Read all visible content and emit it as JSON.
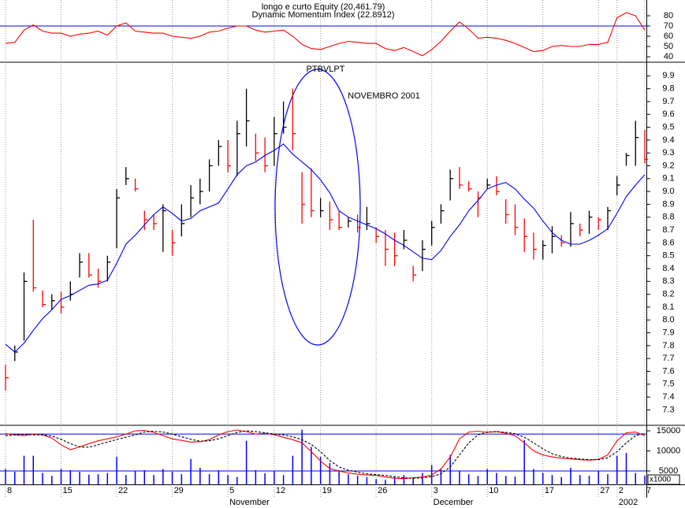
{
  "chart_data": [
    {
      "type": "line",
      "title": "longo e curto Equity (20,461.79)",
      "subtitle": "Dynamic Momentum Index (22.8912)",
      "ylim": [
        35.4,
        95.4
      ],
      "yticks": [
        40,
        50,
        60,
        70,
        80
      ],
      "ref_lines": [
        70
      ],
      "ref_color": "#0000ff",
      "series": [
        {
          "color": "#ff0000",
          "values": [
            53,
            54,
            66,
            71,
            65,
            63,
            63,
            60,
            62,
            63,
            65,
            61,
            70,
            73,
            65,
            64,
            63,
            63,
            60,
            59,
            58,
            60,
            64,
            65,
            68,
            70,
            70,
            66,
            64,
            65,
            66,
            60,
            52,
            48,
            47,
            50,
            53,
            55,
            54,
            53,
            53,
            48,
            46,
            49,
            45,
            41,
            47,
            55,
            65,
            74,
            67,
            58,
            59,
            58,
            56,
            53,
            49,
            45,
            46,
            50,
            51,
            50,
            50,
            52,
            52,
            54,
            78,
            83,
            80,
            66
          ]
        }
      ]
    },
    {
      "type": "hlc",
      "title": "PTBVLPT",
      "annotation": "NOVEMBRO 2001",
      "annotation_color": "#0000ff",
      "ylim": [
        7.18,
        10.0
      ],
      "yticks": [
        7.3,
        7.4,
        7.5,
        7.6,
        7.7,
        7.8,
        7.9,
        {
          "value": 8,
          "label": "8.0"
        },
        8.1,
        8.2,
        8.3,
        8.4,
        8.5,
        8.6,
        8.7,
        8.8,
        8.9,
        {
          "value": 9,
          "label": "9.0"
        },
        9.1,
        9.2,
        9.3,
        9.4,
        9.5,
        9.6,
        9.7,
        9.8,
        9.9
      ],
      "up_color": "#000000",
      "down_color": "#ff0000",
      "high": [
        7.65,
        7.8,
        8.37,
        8.78,
        8.23,
        8.2,
        8.22,
        8.3,
        8.52,
        8.52,
        8.4,
        8.5,
        9.02,
        9.19,
        9.1,
        8.85,
        8.82,
        8.9,
        8.7,
        8.9,
        9.05,
        9.1,
        9.25,
        9.4,
        9.4,
        9.55,
        9.8,
        9.45,
        9.42,
        9.58,
        9.7,
        9.8,
        9.15,
        9.18,
        8.95,
        8.92,
        8.85,
        8.8,
        8.82,
        8.88,
        8.72,
        8.7,
        8.68,
        8.7,
        8.42,
        8.62,
        8.77,
        8.9,
        9.17,
        9.19,
        9.08,
        9.0,
        9.1,
        9.12,
        8.94,
        8.9,
        8.79,
        8.68,
        8.62,
        8.73,
        8.66,
        8.84,
        8.75,
        8.85,
        8.8,
        8.88,
        9.12,
        9.3,
        9.55,
        9.48
      ],
      "low": [
        7.45,
        7.68,
        7.84,
        8.22,
        8.1,
        8.08,
        8.05,
        8.15,
        8.33,
        8.33,
        8.25,
        8.3,
        8.56,
        9.05,
        9.0,
        8.7,
        8.7,
        8.53,
        8.5,
        8.65,
        8.8,
        8.9,
        9.0,
        9.2,
        9.15,
        9.12,
        9.35,
        9.24,
        9.15,
        9.2,
        9.45,
        9.32,
        8.75,
        8.8,
        8.8,
        8.7,
        8.7,
        8.72,
        8.68,
        8.7,
        8.6,
        8.42,
        8.42,
        8.55,
        8.3,
        8.38,
        8.58,
        8.75,
        8.93,
        9.02,
        9.0,
        8.8,
        9.02,
        8.97,
        8.75,
        8.66,
        8.53,
        8.47,
        8.47,
        8.52,
        8.57,
        8.57,
        8.65,
        8.67,
        8.7,
        8.7,
        8.97,
        9.2,
        9.2,
        9.22
      ],
      "close": [
        7.55,
        7.75,
        8.3,
        8.25,
        8.12,
        8.15,
        8.1,
        8.2,
        8.45,
        8.35,
        8.3,
        8.45,
        8.95,
        9.1,
        9.02,
        8.78,
        8.75,
        8.85,
        8.6,
        8.75,
        8.95,
        9.0,
        9.2,
        9.35,
        9.2,
        9.45,
        9.55,
        9.3,
        9.2,
        9.45,
        9.5,
        9.45,
        8.9,
        8.85,
        8.85,
        8.78,
        8.72,
        8.77,
        8.72,
        8.75,
        8.65,
        8.55,
        8.5,
        8.62,
        8.35,
        8.55,
        8.72,
        8.85,
        9.1,
        9.05,
        9.02,
        8.95,
        9.05,
        9.0,
        8.82,
        8.72,
        8.65,
        8.55,
        8.58,
        8.65,
        8.6,
        8.75,
        8.7,
        8.8,
        8.78,
        8.85,
        9.05,
        9.28,
        9.42,
        9.25
      ],
      "series": [
        {
          "color": "#0000ff",
          "values": [
            7.81,
            7.75,
            7.82,
            7.92,
            8.01,
            8.08,
            8.16,
            8.19,
            8.23,
            8.27,
            8.28,
            8.31,
            8.44,
            8.59,
            8.66,
            8.74,
            8.82,
            8.88,
            8.83,
            8.77,
            8.79,
            8.85,
            8.88,
            8.91,
            9.02,
            9.13,
            9.2,
            9.23,
            9.28,
            9.32,
            9.37,
            9.29,
            9.23,
            9.17,
            9.09,
            8.99,
            8.85,
            8.8,
            8.77,
            8.74,
            8.71,
            8.67,
            8.62,
            8.58,
            8.53,
            8.48,
            8.47,
            8.54,
            8.65,
            8.74,
            8.85,
            8.93,
            9.02,
            9.05,
            9.07,
            9.02,
            8.94,
            8.87,
            8.77,
            8.68,
            8.62,
            8.59,
            8.59,
            8.62,
            8.66,
            8.71,
            8.83,
            8.96,
            9.05,
            9.13
          ]
        }
      ]
    },
    {
      "type": "line",
      "unit_label": "x1000",
      "ylim": [
        1670,
        16370
      ],
      "yticks": [
        5000,
        10000,
        15000
      ],
      "ref_lines": [
        14200,
        5000
      ],
      "ref_color": "#0000ff",
      "volume_color": "#0000ff",
      "volume": [
        5500,
        4800,
        8800,
        8800,
        4500,
        3800,
        5500,
        5200,
        4800,
        4100,
        4200,
        4500,
        8500,
        4000,
        5000,
        5200,
        4000,
        5500,
        4800,
        4200,
        8000,
        5800,
        4200,
        5200,
        4000,
        3500,
        12500,
        5200,
        4400,
        5000,
        4000,
        8800,
        15300,
        11000,
        8500,
        7000,
        5200,
        4200,
        3800,
        3500,
        3000,
        2800,
        3500,
        4000,
        3200,
        4500,
        6500,
        5500,
        9000,
        5000,
        4200,
        3800,
        5500,
        4500,
        3800,
        3600,
        12700,
        5500,
        4500,
        4000,
        3500,
        5800,
        4000,
        3800,
        5000,
        4200,
        8800,
        9500,
        4500,
        3800
      ],
      "series": [
        {
          "color": "#ff0000",
          "dash": false,
          "values": [
            14300,
            14000,
            13800,
            14200,
            14000,
            13200,
            11500,
            10300,
            11000,
            11800,
            12500,
            13000,
            13500,
            14200,
            15000,
            15100,
            14600,
            13800,
            13000,
            12600,
            12200,
            12300,
            12800,
            14000,
            14800,
            15200,
            14800,
            14200,
            14400,
            14000,
            13400,
            12800,
            12000,
            9800,
            7500,
            5600,
            5000,
            4500,
            4200,
            4000,
            3900,
            3500,
            3200,
            3100,
            3300,
            3500,
            4000,
            5500,
            8500,
            13000,
            14700,
            14900,
            14600,
            14800,
            14400,
            13800,
            12000,
            10000,
            9000,
            8500,
            8200,
            8000,
            7800,
            7700,
            7900,
            9000,
            12500,
            14500,
            14700,
            13800
          ]
        },
        {
          "color": "#000000",
          "dash": true,
          "values": [
            13800,
            14000,
            14100,
            14000,
            14000,
            13700,
            12900,
            11800,
            11000,
            10900,
            11500,
            12200,
            12800,
            13400,
            14000,
            14700,
            14900,
            14700,
            14200,
            13500,
            12900,
            12400,
            12500,
            13000,
            13800,
            14600,
            15000,
            14800,
            14500,
            14200,
            14000,
            13500,
            12800,
            11600,
            9800,
            7600,
            6000,
            5200,
            4700,
            4300,
            4100,
            3900,
            3600,
            3300,
            3200,
            3300,
            3600,
            4300,
            6000,
            9000,
            12000,
            14000,
            14700,
            14800,
            14600,
            14300,
            13400,
            12000,
            10500,
            9300,
            8600,
            8200,
            8000,
            7800,
            7800,
            8300,
            9800,
            12000,
            13800,
            14400
          ]
        }
      ],
      "categories": [
        "8",
        null,
        null,
        null,
        null,
        null,
        "15",
        null,
        null,
        null,
        null,
        null,
        "22",
        null,
        null,
        null,
        null,
        null,
        "29",
        null,
        null,
        null,
        null,
        null,
        "5",
        null,
        null,
        null,
        null,
        "12",
        null,
        null,
        null,
        null,
        "19",
        null,
        null,
        null,
        null,
        null,
        "26",
        null,
        null,
        null,
        null,
        null,
        "3",
        null,
        null,
        null,
        null,
        null,
        "10",
        null,
        null,
        null,
        null,
        null,
        "17",
        null,
        null,
        null,
        null,
        null,
        "27",
        null,
        "2",
        null,
        null,
        "7"
      ],
      "months": [
        null,
        null,
        null,
        null,
        null,
        null,
        null,
        null,
        null,
        null,
        null,
        null,
        null,
        null,
        null,
        null,
        null,
        null,
        null,
        null,
        null,
        null,
        null,
        null,
        "November",
        null,
        null,
        null,
        null,
        null,
        null,
        null,
        null,
        null,
        null,
        null,
        null,
        null,
        null,
        null,
        null,
        null,
        null,
        null,
        null,
        null,
        "December",
        null,
        null,
        null,
        null,
        null,
        null,
        null,
        null,
        null,
        null,
        null,
        null,
        null,
        null,
        null,
        null,
        null,
        null,
        null,
        "2002",
        null,
        null,
        null
      ]
    }
  ]
}
